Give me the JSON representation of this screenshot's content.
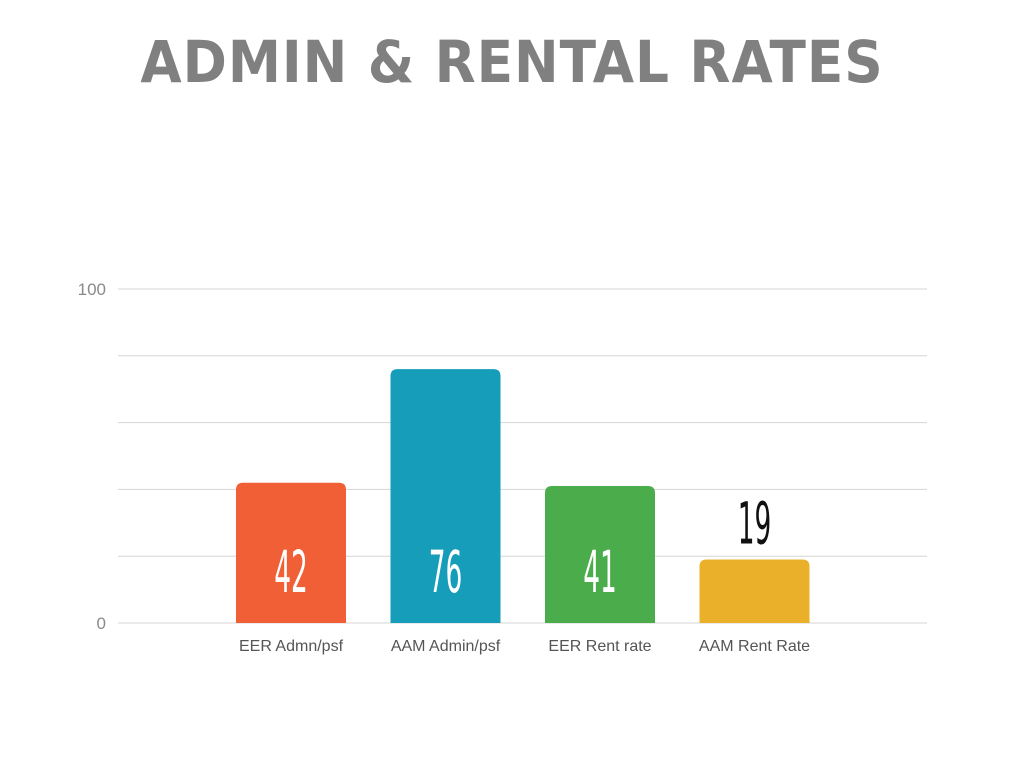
{
  "title": "ADMIN & RENTAL RATES",
  "chart_data": {
    "type": "bar",
    "title": "ADMIN & RENTAL RATES",
    "categories": [
      "EER Admn/psf",
      "AAM Admin/psf",
      "EER Rent rate",
      "AAM Rent Rate"
    ],
    "values": [
      42,
      76,
      41,
      19
    ],
    "colors": [
      "#f05f35",
      "#159dba",
      "#4aac4a",
      "#ebb02a"
    ],
    "ylim": [
      0,
      100
    ],
    "yticks": [
      "0",
      "100"
    ],
    "gridlines": [
      0,
      20,
      40,
      60,
      80,
      100
    ],
    "grid": true,
    "xlabel": "",
    "ylabel": "",
    "value_labels": [
      "42",
      "76",
      "41",
      "19"
    ],
    "value_label_colors": [
      "#ffffff",
      "#ffffff",
      "#ffffff",
      "#111111"
    ]
  }
}
